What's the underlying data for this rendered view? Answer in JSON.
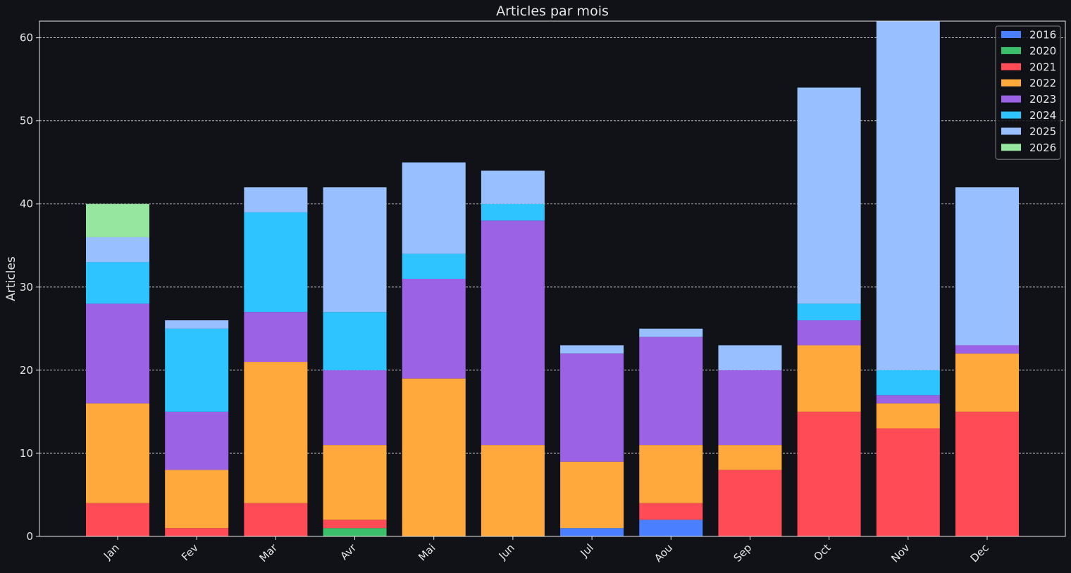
{
  "chart_data": {
    "type": "bar",
    "stacked": true,
    "title": "Articles par mois",
    "xlabel": "",
    "ylabel": "Articles",
    "ylim": [
      0,
      62
    ],
    "yticks": [
      0,
      10,
      20,
      30,
      40,
      50,
      60
    ],
    "grid": "y-dashed",
    "legend_position": "top-right",
    "categories": [
      "Jan",
      "Fev",
      "Mar",
      "Avr",
      "Mai",
      "Jun",
      "Jul",
      "Aou",
      "Sep",
      "Oct",
      "Nov",
      "Dec"
    ],
    "series": [
      {
        "name": "2016",
        "color": "#4a7fff",
        "values": [
          0,
          0,
          0,
          0,
          0,
          0,
          1,
          2,
          0,
          0,
          0,
          0
        ]
      },
      {
        "name": "2020",
        "color": "#3cbf6a",
        "values": [
          0,
          0,
          0,
          1,
          0,
          0,
          0,
          0,
          0,
          0,
          0,
          0
        ]
      },
      {
        "name": "2021",
        "color": "#ff4b55",
        "values": [
          4,
          1,
          4,
          1,
          0,
          0,
          0,
          2,
          8,
          15,
          13,
          15
        ]
      },
      {
        "name": "2022",
        "color": "#ffa83c",
        "values": [
          12,
          7,
          17,
          9,
          19,
          11,
          8,
          7,
          3,
          8,
          3,
          7
        ]
      },
      {
        "name": "2023",
        "color": "#9b62e6",
        "values": [
          12,
          7,
          6,
          9,
          12,
          27,
          13,
          13,
          9,
          3,
          1,
          1
        ]
      },
      {
        "name": "2024",
        "color": "#2ec4ff",
        "values": [
          5,
          10,
          12,
          7,
          3,
          2,
          0,
          0,
          0,
          2,
          3,
          0
        ]
      },
      {
        "name": "2025",
        "color": "#98bfff",
        "values": [
          3,
          1,
          3,
          15,
          11,
          4,
          1,
          1,
          3,
          26,
          42,
          19
        ]
      },
      {
        "name": "2026",
        "color": "#96e6a0",
        "values": [
          4,
          0,
          0,
          0,
          0,
          0,
          0,
          0,
          0,
          0,
          0,
          0
        ]
      }
    ]
  }
}
